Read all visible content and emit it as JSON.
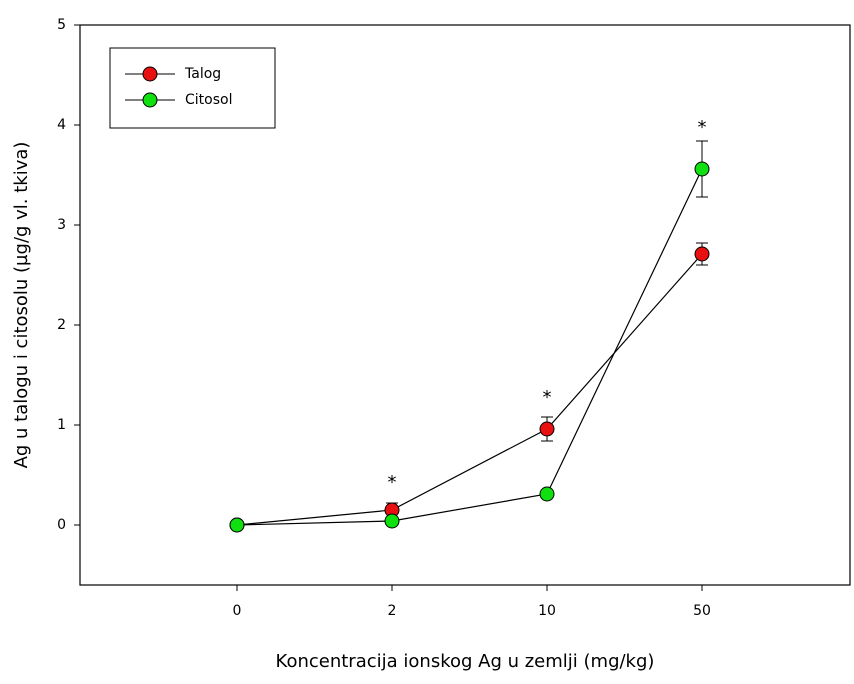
{
  "chart_data": {
    "type": "line",
    "x_label": "Koncentracija ionskog Ag u zemlji (mg/kg)",
    "y_label": "Ag u talogu i citosolu (µg/g vl. tkiva)",
    "categories": [
      "0",
      "2",
      "10",
      "50"
    ],
    "series": [
      {
        "name": "Talog",
        "color": "#e81010",
        "values": [
          0,
          0.15,
          0.96,
          2.71
        ],
        "errors": [
          0.02,
          0.07,
          0.12,
          0.11
        ]
      },
      {
        "name": "Citosol",
        "color": "#10e010",
        "values": [
          0,
          0.04,
          0.31,
          3.56
        ],
        "errors": [
          0.01,
          0.02,
          0.03,
          0.28
        ]
      }
    ],
    "annotations": [
      {
        "text": "*",
        "category": "2",
        "y": 0.42
      },
      {
        "text": "*",
        "category": "10",
        "y": 1.27
      },
      {
        "text": "*",
        "category": "50",
        "y": 3.97
      }
    ],
    "ylim": [
      -0.6,
      5
    ],
    "yticks": [
      0,
      1,
      2,
      3,
      4,
      5
    ],
    "legend": "upper-left",
    "grid": false
  }
}
